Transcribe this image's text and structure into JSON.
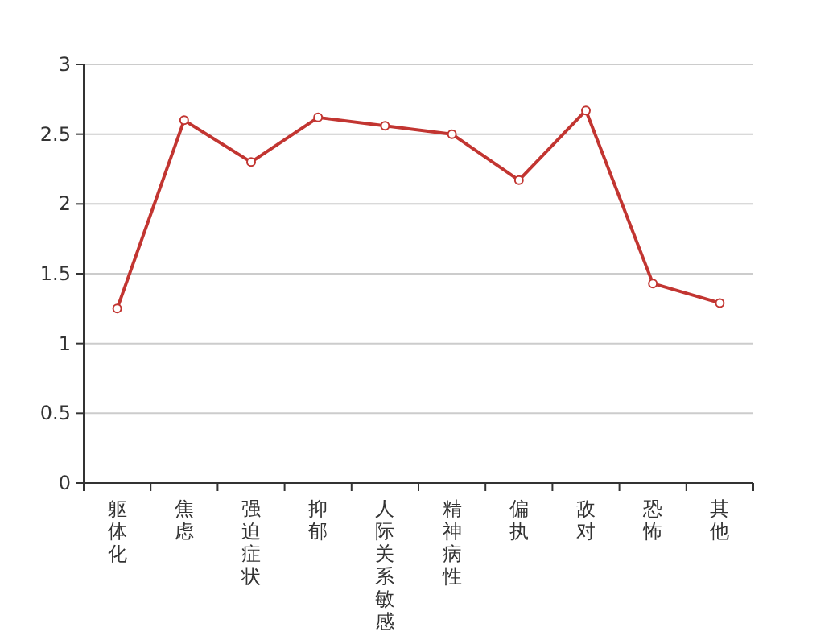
{
  "chart_data": {
    "type": "line",
    "categories": [
      "躯体化",
      "焦虑",
      "强迫症状",
      "抑郁",
      "人际关系敏感",
      "精神病性",
      "偏执",
      "敌对",
      "恐怖",
      "其他"
    ],
    "series": [
      {
        "color": "#c23531",
        "values": [
          1.25,
          2.6,
          2.3,
          2.62,
          2.56,
          2.5,
          2.17,
          2.67,
          1.43,
          1.29
        ]
      }
    ],
    "ylim": [
      0,
      3
    ],
    "yticks": [
      0,
      0.5,
      1,
      1.5,
      2,
      2.5,
      3
    ],
    "grid": "y",
    "marker": "circle",
    "line_style": "solid"
  }
}
